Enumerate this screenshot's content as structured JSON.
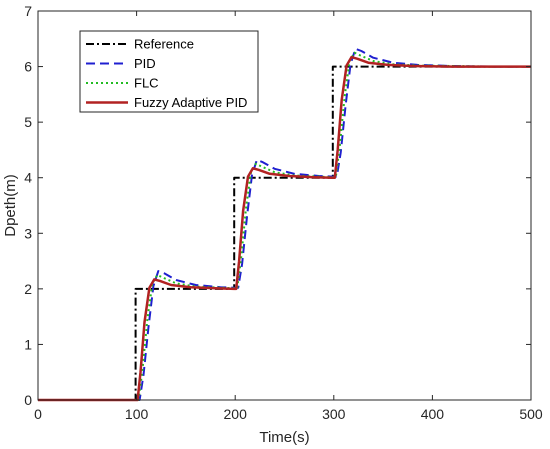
{
  "chart_data": {
    "type": "line",
    "xlabel": "Time(s)",
    "ylabel": "Dpeth(m)",
    "xlim": [
      0,
      500
    ],
    "ylim": [
      0,
      7
    ],
    "xticks": [
      "0",
      "100",
      "200",
      "300",
      "400",
      "500"
    ],
    "yticks": [
      "0",
      "1",
      "2",
      "3",
      "4",
      "5",
      "6",
      "7"
    ],
    "grid": false,
    "legend_position": "top-left",
    "series": [
      {
        "name": "Reference",
        "color": "#000000",
        "style": "dash-dot",
        "x": [
          0,
          99,
          99,
          199,
          199,
          299,
          299,
          500
        ],
        "y": [
          0,
          0,
          2,
          2,
          4,
          4,
          6,
          6
        ]
      },
      {
        "name": "PID",
        "color": "#1f1fd0",
        "style": "dashed",
        "x": [
          0,
          103,
          107,
          112,
          117,
          122,
          128,
          140,
          160,
          185,
          199,
          203,
          207,
          212,
          217,
          222,
          228,
          240,
          260,
          285,
          299,
          303,
          307,
          312,
          317,
          322,
          328,
          340,
          360,
          385,
          420,
          460,
          500
        ],
        "y": [
          0,
          0,
          0.45,
          1.3,
          2.05,
          2.32,
          2.28,
          2.16,
          2.07,
          2.03,
          2.02,
          2.02,
          2.45,
          3.3,
          4.05,
          4.32,
          4.28,
          4.16,
          4.07,
          4.03,
          4.02,
          4.02,
          4.45,
          5.3,
          6.05,
          6.32,
          6.28,
          6.16,
          6.07,
          6.03,
          6.01,
          6.0,
          6.0
        ]
      },
      {
        "name": "FLC",
        "color": "#22bb22",
        "style": "dotted",
        "x": [
          0,
          102,
          106,
          111,
          116,
          121,
          127,
          140,
          160,
          185,
          199,
          202,
          206,
          211,
          216,
          221,
          227,
          240,
          260,
          285,
          299,
          302,
          306,
          311,
          316,
          321,
          327,
          340,
          360,
          385,
          420,
          460,
          500
        ],
        "y": [
          0,
          0,
          0.55,
          1.45,
          2.1,
          2.25,
          2.2,
          2.1,
          2.04,
          2.02,
          2.01,
          2.01,
          2.55,
          3.45,
          4.1,
          4.25,
          4.2,
          4.1,
          4.04,
          4.02,
          4.01,
          4.01,
          4.55,
          5.45,
          6.1,
          6.25,
          6.2,
          6.1,
          6.04,
          6.02,
          6.01,
          6.0,
          6.0
        ]
      },
      {
        "name": "Fuzzy Adaptive PID",
        "color": "#b22222",
        "style": "solid",
        "x": [
          0,
          101,
          104,
          108,
          113,
          118,
          124,
          135,
          155,
          180,
          199,
          201,
          204,
          208,
          213,
          218,
          224,
          235,
          255,
          280,
          299,
          301,
          304,
          308,
          313,
          318,
          324,
          335,
          355,
          380,
          420,
          460,
          500
        ],
        "y": [
          0,
          0,
          0.5,
          1.4,
          2.02,
          2.17,
          2.14,
          2.07,
          2.03,
          2.01,
          2.0,
          2.0,
          2.5,
          3.4,
          4.02,
          4.17,
          4.14,
          4.07,
          4.03,
          4.01,
          4.0,
          4.0,
          4.5,
          5.4,
          6.02,
          6.17,
          6.14,
          6.07,
          6.03,
          6.01,
          6.0,
          6.0,
          6.0
        ]
      }
    ]
  }
}
